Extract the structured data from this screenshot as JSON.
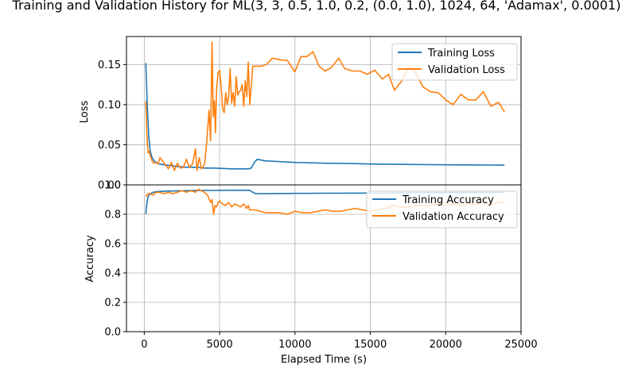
{
  "title": "Training and Validation History for ML(3, 3, 0.5, 1.0, 0.2, (0.0, 1.0), 1024, 64, 'Adamax', 0.0001)",
  "xlabel": "Elapsed Time (s)",
  "colors": {
    "training": "#1f77b4",
    "validation": "#ff7f0e",
    "grid": "#b0b0b0"
  },
  "chart_data": [
    {
      "type": "line",
      "ylabel": "Loss",
      "xlim": [
        -1180,
        25000
      ],
      "ylim": [
        0,
        0.185
      ],
      "xticks": [
        0,
        5000,
        10000,
        15000,
        20000,
        25000
      ],
      "yticks": [
        0.0,
        0.05,
        0.1,
        0.15
      ],
      "ytick_labels": [
        "0.00",
        "0.05",
        "0.10",
        "0.15"
      ],
      "grid": true,
      "legend": "upper right",
      "series": [
        {
          "name": "Training Loss",
          "color": "#1f77b4",
          "x": [
            100,
            200,
            300,
            400,
            500,
            650,
            800,
            1000,
            1300,
            1700,
            2200,
            2800,
            3400,
            4000,
            4600,
            5200,
            5800,
            6400,
            6900,
            7100,
            7300,
            7500,
            8000,
            9000,
            10000,
            11000,
            12000,
            13000,
            14000,
            15000,
            16000,
            17000,
            18000,
            19000,
            20000,
            21000,
            22000,
            23000,
            23900
          ],
          "y": [
            0.152,
            0.1,
            0.06,
            0.042,
            0.035,
            0.03,
            0.028,
            0.026,
            0.025,
            0.024,
            0.023,
            0.022,
            0.022,
            0.021,
            0.021,
            0.0205,
            0.02,
            0.02,
            0.02,
            0.021,
            0.028,
            0.032,
            0.03,
            0.029,
            0.028,
            0.0275,
            0.027,
            0.0268,
            0.0265,
            0.026,
            0.0258,
            0.0256,
            0.0254,
            0.0252,
            0.025,
            0.0249,
            0.0248,
            0.0247,
            0.0246
          ]
        },
        {
          "name": "Validation Loss",
          "color": "#ff7f0e",
          "x": [
            100,
            170,
            250,
            330,
            420,
            520,
            620,
            760,
            900,
            1050,
            1250,
            1400,
            1600,
            1800,
            2000,
            2200,
            2400,
            2600,
            2800,
            3000,
            3200,
            3400,
            3500,
            3650,
            3800,
            4000,
            4150,
            4300,
            4400,
            4500,
            4580,
            4650,
            4720,
            4800,
            4900,
            5000,
            5100,
            5200,
            5300,
            5400,
            5500,
            5600,
            5700,
            5800,
            5900,
            6000,
            6100,
            6200,
            6300,
            6400,
            6500,
            6600,
            6700,
            6800,
            6900,
            7000,
            7200,
            7500,
            7800,
            8100,
            8500,
            9000,
            9500,
            10000,
            10400,
            10800,
            11200,
            11600,
            12000,
            12400,
            12900,
            13300,
            13800,
            14300,
            14800,
            15300,
            15800,
            16200,
            16600,
            17100,
            17600,
            18000,
            18500,
            19000,
            19500,
            20000,
            20500,
            21000,
            21500,
            22000,
            22500,
            23000,
            23500,
            23900
          ],
          "y": [
            0.104,
            0.065,
            0.04,
            0.042,
            0.035,
            0.03,
            0.027,
            0.028,
            0.026,
            0.034,
            0.029,
            0.025,
            0.02,
            0.028,
            0.018,
            0.027,
            0.021,
            0.022,
            0.032,
            0.022,
            0.026,
            0.045,
            0.018,
            0.034,
            0.02,
            0.025,
            0.055,
            0.093,
            0.055,
            0.178,
            0.085,
            0.105,
            0.065,
            0.12,
            0.14,
            0.143,
            0.123,
            0.095,
            0.09,
            0.115,
            0.1,
            0.11,
            0.145,
            0.102,
            0.115,
            0.098,
            0.135,
            0.112,
            0.116,
            0.118,
            0.125,
            0.098,
            0.13,
            0.11,
            0.153,
            0.1,
            0.148,
            0.148,
            0.148,
            0.15,
            0.158,
            0.156,
            0.155,
            0.141,
            0.16,
            0.16,
            0.166,
            0.148,
            0.142,
            0.146,
            0.158,
            0.145,
            0.142,
            0.142,
            0.138,
            0.143,
            0.132,
            0.138,
            0.118,
            0.13,
            0.148,
            0.14,
            0.122,
            0.116,
            0.115,
            0.106,
            0.1,
            0.113,
            0.106,
            0.106,
            0.116,
            0.098,
            0.103,
            0.091
          ]
        }
      ]
    },
    {
      "type": "line",
      "ylabel": "Accuracy",
      "xlim": [
        -1180,
        25000
      ],
      "ylim": [
        0,
        1.0
      ],
      "xticks": [
        0,
        5000,
        10000,
        15000,
        20000,
        25000
      ],
      "xtick_labels": [
        "0",
        "5000",
        "10000",
        "15000",
        "20000",
        "25000"
      ],
      "yticks": [
        0.0,
        0.2,
        0.4,
        0.6,
        0.8,
        1.0
      ],
      "ytick_labels": [
        "0.0",
        "0.2",
        "0.4",
        "0.6",
        "0.8",
        "1.0"
      ],
      "grid": true,
      "legend": "upper right",
      "series": [
        {
          "name": "Training Accuracy",
          "color": "#1f77b4",
          "x": [
            100,
            150,
            250,
            400,
            600,
            900,
            1500,
            2500,
            3500,
            4500,
            5500,
            6500,
            7000,
            7200,
            7400,
            8000,
            9000,
            10000,
            12000,
            14000,
            16000,
            18000,
            20000,
            22000,
            23900
          ],
          "y": [
            0.8,
            0.86,
            0.92,
            0.94,
            0.95,
            0.955,
            0.958,
            0.96,
            0.962,
            0.962,
            0.963,
            0.963,
            0.963,
            0.95,
            0.94,
            0.94,
            0.941,
            0.942,
            0.943,
            0.944,
            0.945,
            0.946,
            0.947,
            0.948,
            0.949
          ]
        },
        {
          "name": "Validation Accuracy",
          "color": "#ff7f0e",
          "x": [
            100,
            250,
            400,
            600,
            800,
            1000,
            1300,
            1600,
            1900,
            2200,
            2500,
            2800,
            3100,
            3400,
            3600,
            3800,
            4000,
            4200,
            4400,
            4500,
            4600,
            4700,
            4800,
            4900,
            5000,
            5200,
            5400,
            5600,
            5800,
            6000,
            6200,
            6400,
            6600,
            6800,
            6900,
            7000,
            7300,
            7700,
            8100,
            8500,
            9000,
            9500,
            10000,
            10500,
            11000,
            11500,
            12000,
            12500,
            13000,
            13500,
            14000,
            14500,
            15000,
            15500,
            16000,
            16500,
            17000,
            17500,
            18000,
            18500,
            19000,
            19500,
            20000,
            20500,
            21000,
            21500,
            22000,
            22500,
            23000,
            23500,
            23900
          ],
          "y": [
            0.92,
            0.94,
            0.94,
            0.93,
            0.95,
            0.95,
            0.94,
            0.95,
            0.94,
            0.95,
            0.96,
            0.95,
            0.96,
            0.95,
            0.97,
            0.96,
            0.95,
            0.93,
            0.88,
            0.9,
            0.8,
            0.86,
            0.85,
            0.88,
            0.89,
            0.87,
            0.86,
            0.88,
            0.85,
            0.87,
            0.86,
            0.85,
            0.87,
            0.84,
            0.86,
            0.83,
            0.83,
            0.82,
            0.81,
            0.81,
            0.81,
            0.8,
            0.82,
            0.81,
            0.81,
            0.82,
            0.83,
            0.82,
            0.82,
            0.83,
            0.84,
            0.83,
            0.82,
            0.83,
            0.84,
            0.86,
            0.85,
            0.85,
            0.86,
            0.86,
            0.86,
            0.87,
            0.86,
            0.87,
            0.86,
            0.87,
            0.87,
            0.88,
            0.87,
            0.88,
            0.88
          ]
        }
      ]
    }
  ]
}
